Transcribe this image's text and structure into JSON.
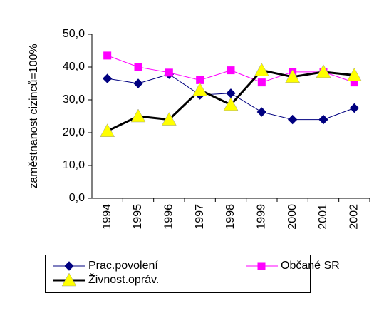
{
  "chart_data": {
    "type": "line",
    "ylabel": "zaměstnanost cizinců=100%",
    "categories": [
      "1994",
      "1995",
      "1996",
      "1997",
      "1998",
      "1999",
      "2000",
      "2001",
      "2002"
    ],
    "series": [
      {
        "name": "Prac.povolení",
        "color": "#000080",
        "marker": "diamond",
        "marker_color": "#000080",
        "width": 1,
        "values": [
          36.5,
          35,
          37.8,
          31.5,
          32,
          26.3,
          24,
          24,
          27.5
        ]
      },
      {
        "name": "Občané SR",
        "color": "#ff00ff",
        "marker": "square",
        "marker_color": "#ff00ff",
        "width": 1,
        "values": [
          43.5,
          40,
          38.3,
          36,
          39,
          35.3,
          38.5,
          38.5,
          35.3
        ]
      },
      {
        "name": "Živnost.opráv.",
        "color": "#000000",
        "marker": "triangle",
        "marker_color": "#ffff00",
        "width": 3,
        "values": [
          20.5,
          25,
          24,
          33,
          28.5,
          39,
          37,
          38.5,
          37.5
        ]
      }
    ],
    "ylim": [
      0,
      50
    ],
    "yticks": [
      {
        "value": 0,
        "label": "0,0"
      },
      {
        "value": 10,
        "label": "10,0"
      },
      {
        "value": 20,
        "label": "20,0"
      },
      {
        "value": 30,
        "label": "30,0"
      },
      {
        "value": 40,
        "label": "40,0"
      },
      {
        "value": 50,
        "label": "50,0"
      }
    ],
    "legend": "bottom"
  }
}
